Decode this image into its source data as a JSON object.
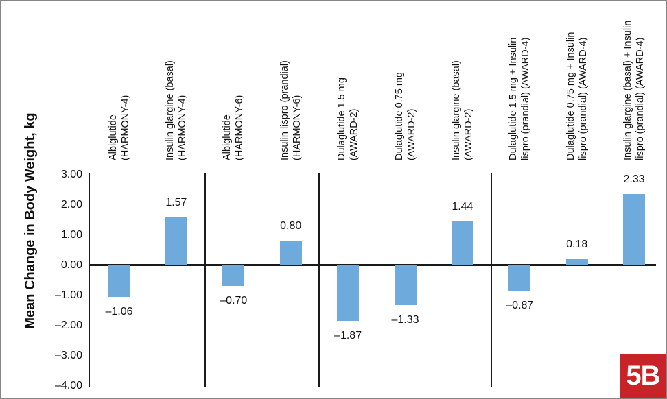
{
  "figure": {
    "panel_label": "5B",
    "panel_color": "#c9232a",
    "bar_color": "#6eabdc",
    "axis_color": "#1a1a1a"
  },
  "chart_data": {
    "type": "bar",
    "title": "",
    "xlabel": "",
    "ylabel": "Mean Change in Body Weight, kg",
    "ylim": [
      -4.0,
      3.0
    ],
    "grid": false,
    "legend": "none",
    "yticks": [
      {
        "value": 3,
        "label": "3.00"
      },
      {
        "value": 2,
        "label": "2.00"
      },
      {
        "value": 1,
        "label": "1.00"
      },
      {
        "value": 0,
        "label": "0.00"
      },
      {
        "value": -1,
        "label": "–1.00"
      },
      {
        "value": -2,
        "label": "–2.00"
      },
      {
        "value": -3,
        "label": "–3.00"
      },
      {
        "value": -4,
        "label": "–4.00"
      }
    ],
    "groups": [
      {
        "study": "HARMONY-4",
        "count": 2
      },
      {
        "study": "HARMONY-6",
        "count": 2
      },
      {
        "study": "AWARD-2",
        "count": 3
      },
      {
        "study": "AWARD-4",
        "count": 3
      }
    ],
    "bars": [
      {
        "label_line1": "Albiglutide",
        "label_line2": "(HARMONY-4)",
        "value": -1.06,
        "display": "–1.06"
      },
      {
        "label_line1": "Insulin glargine (basal)",
        "label_line2": "(HARMONY-4)",
        "value": 1.57,
        "display": "1.57"
      },
      {
        "label_line1": "Albiglutide",
        "label_line2": "(HARMONY-6)",
        "value": -0.7,
        "display": "–0.70"
      },
      {
        "label_line1": "Insulin lispro (prandial)",
        "label_line2": "(HARMONY-6)",
        "value": 0.8,
        "display": "0.80"
      },
      {
        "label_line1": "Dulaglutide 1.5 mg",
        "label_line2": "(AWARD-2)",
        "value": -1.87,
        "display": "–1.87"
      },
      {
        "label_line1": "Dulaglutide 0.75 mg",
        "label_line2": "(AWARD-2)",
        "value": -1.33,
        "display": "–1.33"
      },
      {
        "label_line1": "Insulin glargine (basal)",
        "label_line2": "(AWARD-2)",
        "value": 1.44,
        "display": "1.44"
      },
      {
        "label_line1": "Dulaglutide 1.5 mg + Insulin",
        "label_line2": "lispro (prandial) (AWARD-4)",
        "value": -0.87,
        "display": "–0.87"
      },
      {
        "label_line1": "Dulaglutide 0.75 mg + Insulin",
        "label_line2": "lispro (prandial) (AWARD-4)",
        "value": 0.18,
        "display": "0.18"
      },
      {
        "label_line1": "Insulin glargine (basal) + Insulin",
        "label_line2": "lispro (prandial) (AWARD-4)",
        "value": 2.33,
        "display": "2.33"
      }
    ]
  }
}
